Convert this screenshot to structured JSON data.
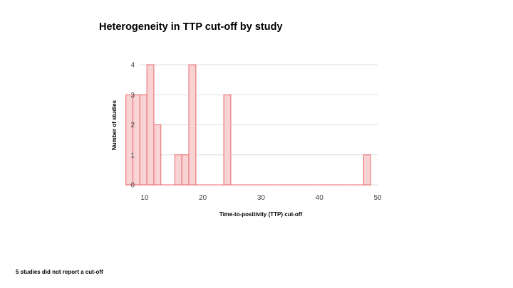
{
  "chart_data": {
    "type": "bar",
    "title": "Heterogeneity in TTP cut-off by study",
    "xlabel": "Time-to-positivity (TTP) cut-off",
    "ylabel": "Number of studies",
    "xlim": [
      5,
      50
    ],
    "ylim": [
      0,
      4
    ],
    "x_ticks": [
      10,
      20,
      30,
      40,
      50
    ],
    "y_ticks": [
      0,
      1,
      2,
      3,
      4
    ],
    "grid": true,
    "legend": "none",
    "bin_width": 1.2,
    "bins": [
      {
        "x0": 6.8,
        "count": 3
      },
      {
        "x0": 8.0,
        "count": 3
      },
      {
        "x0": 9.2,
        "count": 3
      },
      {
        "x0": 10.4,
        "count": 4
      },
      {
        "x0": 11.6,
        "count": 2
      },
      {
        "x0": 12.8,
        "count": 0
      },
      {
        "x0": 14.0,
        "count": 0
      },
      {
        "x0": 15.2,
        "count": 1
      },
      {
        "x0": 16.4,
        "count": 1
      },
      {
        "x0": 17.6,
        "count": 4
      },
      {
        "x0": 18.8,
        "count": 0
      },
      {
        "x0": 20.0,
        "count": 0
      },
      {
        "x0": 21.2,
        "count": 0
      },
      {
        "x0": 22.4,
        "count": 0
      },
      {
        "x0": 23.6,
        "count": 3
      },
      {
        "x0": 24.8,
        "count": 0
      },
      {
        "x0": 26.0,
        "count": 0
      },
      {
        "x0": 27.2,
        "count": 0
      },
      {
        "x0": 28.4,
        "count": 0
      },
      {
        "x0": 29.6,
        "count": 0
      },
      {
        "x0": 30.8,
        "count": 0
      },
      {
        "x0": 32.0,
        "count": 0
      },
      {
        "x0": 33.2,
        "count": 0
      },
      {
        "x0": 34.4,
        "count": 0
      },
      {
        "x0": 35.6,
        "count": 0
      },
      {
        "x0": 36.8,
        "count": 0
      },
      {
        "x0": 38.0,
        "count": 0
      },
      {
        "x0": 39.2,
        "count": 0
      },
      {
        "x0": 40.4,
        "count": 0
      },
      {
        "x0": 41.6,
        "count": 0
      },
      {
        "x0": 42.8,
        "count": 0
      },
      {
        "x0": 44.0,
        "count": 0
      },
      {
        "x0": 45.2,
        "count": 0
      },
      {
        "x0": 46.4,
        "count": 0
      },
      {
        "x0": 47.6,
        "count": 1
      }
    ],
    "colors": {
      "bar_fill": "#f9d3d3",
      "bar_stroke": "#e8676b",
      "gridline": "#dddddd",
      "baseline": "#e8676b"
    }
  },
  "footnote": "5 studies did not report a cut-off"
}
